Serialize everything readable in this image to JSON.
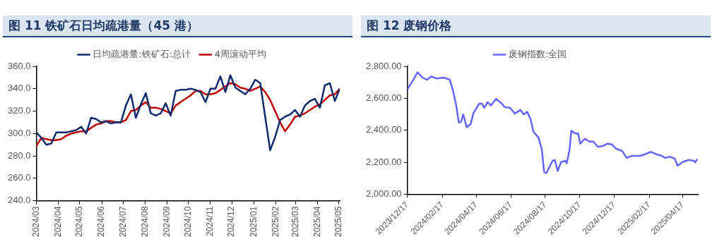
{
  "chart_data": [
    {
      "type": "line",
      "title": "图 11 铁矿石日均疏港量（45 港）",
      "legend": "top",
      "grid": false,
      "x": [
        "2024-03-01",
        "2024-03-08",
        "2024-03-15",
        "2024-03-22",
        "2024-03-29",
        "2024-04-05",
        "2024-04-12",
        "2024-04-19",
        "2024-04-26",
        "2024-05-03",
        "2024-05-10",
        "2024-05-17",
        "2024-05-24",
        "2024-05-31",
        "2024-06-07",
        "2024-06-14",
        "2024-06-21",
        "2024-06-28",
        "2024-07-05",
        "2024-07-12",
        "2024-07-19",
        "2024-07-26",
        "2024-08-02",
        "2024-08-09",
        "2024-08-16",
        "2024-08-23",
        "2024-08-30",
        "2024-09-06",
        "2024-09-13",
        "2024-09-20",
        "2024-09-27",
        "2024-10-04",
        "2024-10-11",
        "2024-10-18",
        "2024-10-25",
        "2024-11-01",
        "2024-11-08",
        "2024-11-15",
        "2024-11-22",
        "2024-11-29",
        "2024-12-06",
        "2024-12-13",
        "2024-12-20",
        "2024-12-27",
        "2025-01-03",
        "2025-01-10",
        "2025-01-17",
        "2025-01-24",
        "2025-01-31",
        "2025-02-07",
        "2025-02-14",
        "2025-02-21",
        "2025-02-28",
        "2025-03-07",
        "2025-03-14",
        "2025-03-21",
        "2025-03-28",
        "2025-04-04",
        "2025-04-11",
        "2025-04-18",
        "2025-04-25",
        "2025-05-02"
      ],
      "series": [
        {
          "name": "日均疏港量:铁矿石:总计",
          "color": "#0e2a6b",
          "values": [
            301,
            296,
            290,
            291,
            301,
            301,
            301,
            302,
            303,
            306,
            300,
            314,
            313,
            310,
            311,
            309,
            310,
            310,
            325,
            335,
            314,
            326,
            336,
            318,
            316,
            318,
            327,
            316,
            338,
            339,
            339,
            340,
            339,
            337,
            328,
            340,
            340,
            351,
            337,
            352,
            341,
            338,
            335,
            340,
            348,
            345,
            315,
            285,
            297,
            312,
            315,
            317,
            321,
            315,
            325,
            329,
            331,
            323,
            343,
            345,
            329,
            340
          ]
        },
        {
          "name": "4周滚动平均",
          "color": "#c00000",
          "values": [
            289,
            296,
            295,
            294,
            294,
            295,
            298,
            300,
            301,
            302,
            302,
            305,
            308,
            309,
            311,
            311,
            310,
            310,
            312,
            320,
            321,
            325,
            328,
            323,
            323,
            322,
            320,
            318,
            325,
            328,
            331,
            334,
            338,
            338,
            335,
            335,
            336,
            339,
            342,
            345,
            344,
            341,
            340,
            338,
            340,
            342,
            337,
            330,
            320,
            310,
            302,
            308,
            315,
            316,
            318,
            321,
            324,
            326,
            330,
            334,
            335,
            340
          ]
        }
      ],
      "xlim": [
        "2024-03-01",
        "2025-05-02"
      ],
      "xticks": [
        {
          "value": "2024-03-01",
          "label": "2024/03"
        },
        {
          "value": "2024-04-01",
          "label": "2024/04"
        },
        {
          "value": "2024-05-01",
          "label": "2024/05"
        },
        {
          "value": "2024-06-01",
          "label": "2024/06"
        },
        {
          "value": "2024-07-01",
          "label": "2024/07"
        },
        {
          "value": "2024-08-01",
          "label": "2024/08"
        },
        {
          "value": "2024-09-01",
          "label": "2024/09"
        },
        {
          "value": "2024-10-01",
          "label": "2024/10"
        },
        {
          "value": "2024-11-01",
          "label": "2024/11"
        },
        {
          "value": "2024-12-01",
          "label": "2024/12"
        },
        {
          "value": "2025-01-01",
          "label": "2025/01"
        },
        {
          "value": "2025-02-01",
          "label": "2025/02"
        },
        {
          "value": "2025-03-01",
          "label": "2025/03"
        },
        {
          "value": "2025-04-01",
          "label": "2025/04"
        },
        {
          "value": "2025-05-01",
          "label": "2025/05"
        }
      ],
      "ylim": [
        240,
        360
      ],
      "yticks": [
        {
          "value": 240,
          "label": "240.0"
        },
        {
          "value": 260,
          "label": "260.0"
        },
        {
          "value": 280,
          "label": "280.0"
        },
        {
          "value": 300,
          "label": "300.0"
        },
        {
          "value": 320,
          "label": "320.0"
        },
        {
          "value": 340,
          "label": "340.0"
        },
        {
          "value": 360,
          "label": "360.0"
        }
      ]
    },
    {
      "type": "line",
      "title": "图 12 废钢价格",
      "legend": "top",
      "grid": false,
      "x": [
        "2023-12-17",
        "2023-12-27",
        "2024-01-04",
        "2024-01-13",
        "2024-01-21",
        "2024-01-28",
        "2024-02-07",
        "2024-02-20",
        "2024-03-01",
        "2024-03-07",
        "2024-03-13",
        "2024-03-17",
        "2024-03-21",
        "2024-03-25",
        "2024-03-31",
        "2024-04-07",
        "2024-04-12",
        "2024-04-22",
        "2024-04-27",
        "2024-05-01",
        "2024-05-07",
        "2024-05-13",
        "2024-05-22",
        "2024-05-31",
        "2024-06-06",
        "2024-06-16",
        "2024-06-24",
        "2024-07-04",
        "2024-07-10",
        "2024-07-16",
        "2024-07-22",
        "2024-07-27",
        "2024-08-05",
        "2024-08-11",
        "2024-08-15",
        "2024-08-19",
        "2024-08-24",
        "2024-08-30",
        "2024-09-03",
        "2024-09-08",
        "2024-09-14",
        "2024-09-22",
        "2024-09-24",
        "2024-09-29",
        "2024-10-02",
        "2024-10-09",
        "2024-10-14",
        "2024-10-18",
        "2024-10-26",
        "2024-11-03",
        "2024-11-10",
        "2024-11-18",
        "2024-11-28",
        "2024-12-05",
        "2024-12-13",
        "2024-12-20",
        "2024-12-31",
        "2025-01-08",
        "2025-01-17",
        "2025-02-01",
        "2025-02-11",
        "2025-02-20",
        "2025-03-01",
        "2025-03-11",
        "2025-03-17",
        "2025-03-26",
        "2025-04-03",
        "2025-04-08",
        "2025-04-17",
        "2025-04-27",
        "2025-05-07",
        "2025-05-09",
        "2025-05-13"
      ],
      "series": [
        {
          "name": "废钢指数:全国",
          "color": "#6666ff",
          "values": [
            2655,
            2711,
            2762,
            2729,
            2716,
            2736,
            2724,
            2729,
            2716,
            2647,
            2545,
            2448,
            2453,
            2499,
            2418,
            2438,
            2507,
            2566,
            2566,
            2540,
            2576,
            2555,
            2596,
            2571,
            2545,
            2540,
            2504,
            2527,
            2499,
            2515,
            2469,
            2392,
            2354,
            2278,
            2138,
            2132,
            2168,
            2209,
            2214,
            2145,
            2201,
            2209,
            2194,
            2278,
            2397,
            2380,
            2380,
            2316,
            2347,
            2329,
            2329,
            2296,
            2303,
            2316,
            2311,
            2285,
            2270,
            2227,
            2240,
            2240,
            2252,
            2265,
            2250,
            2240,
            2227,
            2234,
            2222,
            2178,
            2201,
            2214,
            2209,
            2199,
            2219
          ]
        }
      ],
      "xlim": [
        "2023-12-17",
        "2025-05-14"
      ],
      "xticks": [
        {
          "value": "2023-12-17",
          "label": "2023/12/17"
        },
        {
          "value": "2024-02-17",
          "label": "2024/02/17"
        },
        {
          "value": "2024-04-17",
          "label": "2024/04/17"
        },
        {
          "value": "2024-06-17",
          "label": "2024/06/17"
        },
        {
          "value": "2024-08-17",
          "label": "2024/08/17"
        },
        {
          "value": "2024-10-17",
          "label": "2024/10/17"
        },
        {
          "value": "2024-12-17",
          "label": "2024/12/17"
        },
        {
          "value": "2025-02-17",
          "label": "2025/02/17"
        },
        {
          "value": "2025-04-17",
          "label": "2025/04/17"
        }
      ],
      "ylim": [
        2000,
        2800
      ],
      "yticks": [
        {
          "value": 2000,
          "label": "2,000.00"
        },
        {
          "value": 2200,
          "label": "2,200.00"
        },
        {
          "value": 2400,
          "label": "2,400.00"
        },
        {
          "value": 2600,
          "label": "2,600.00"
        },
        {
          "value": 2800,
          "label": "2,800.00"
        }
      ]
    }
  ]
}
